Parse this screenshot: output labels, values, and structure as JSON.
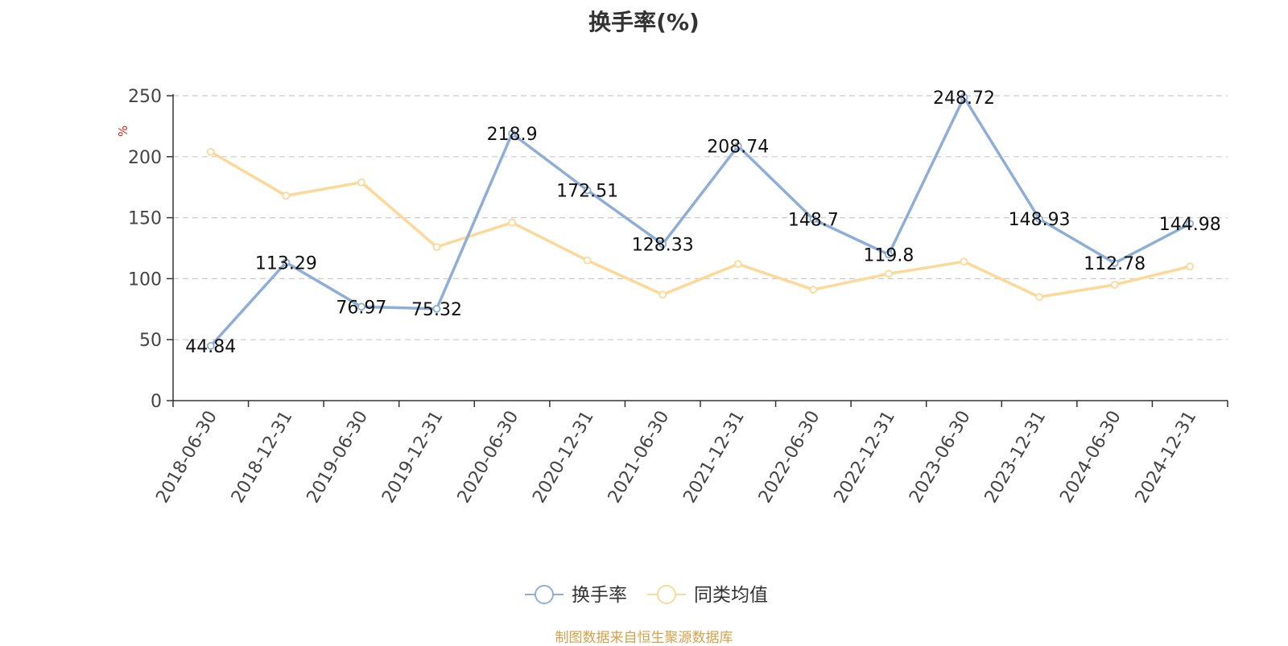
{
  "chart_data": {
    "type": "line",
    "title": "换手率(%)",
    "ylabel": "%",
    "ylim": [
      0,
      250
    ],
    "yticks": [
      0,
      50,
      100,
      150,
      200,
      250
    ],
    "categories": [
      "2018-06-30",
      "2018-12-31",
      "2019-06-30",
      "2019-12-31",
      "2020-06-30",
      "2020-12-31",
      "2021-06-30",
      "2021-12-31",
      "2022-06-30",
      "2022-12-31",
      "2023-06-30",
      "2023-12-31",
      "2024-06-30",
      "2024-12-31"
    ],
    "series": [
      {
        "name": "换手率",
        "color": "#8eaed8",
        "values": [
          44.84,
          113.29,
          76.97,
          75.32,
          218.9,
          172.51,
          128.33,
          208.74,
          148.7,
          119.8,
          248.72,
          148.93,
          112.78,
          144.98
        ],
        "labels": [
          "44.84",
          "113.29",
          "76.97",
          "75.32",
          "218.9",
          "172.51",
          "128.33",
          "208.74",
          "148.7",
          "119.8",
          "248.72",
          "148.93",
          "112.78",
          "144.98"
        ]
      },
      {
        "name": "同类均值",
        "color": "#fcd998",
        "values": [
          204,
          168,
          179,
          126,
          146,
          115,
          87,
          112,
          91,
          104,
          114,
          85,
          95,
          110
        ]
      }
    ],
    "grid": true,
    "legend_position": "bottom-center"
  },
  "footer": {
    "source": "制图数据来自恒生聚源数据库"
  }
}
